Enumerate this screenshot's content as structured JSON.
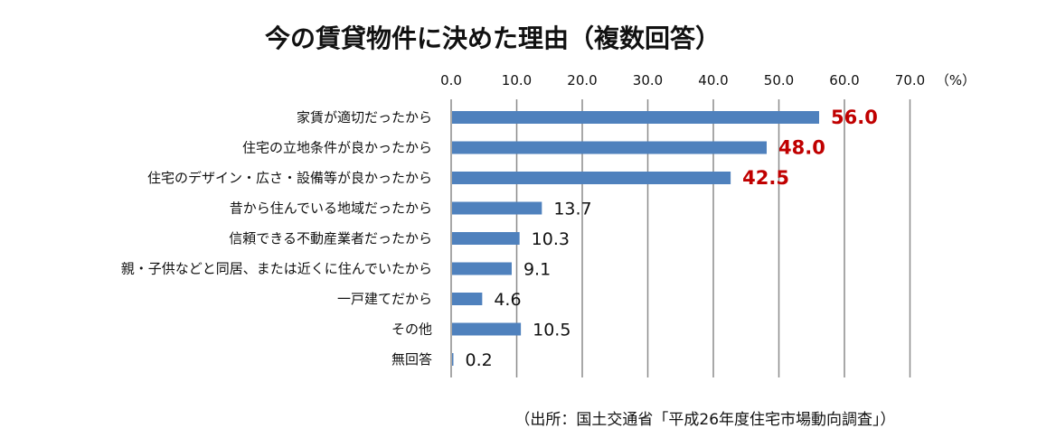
{
  "chart_data": {
    "type": "bar",
    "orientation": "horizontal",
    "title": "今の賃貸物件に決めた理由（複数回答）",
    "unit_label": "（%）",
    "xlim": [
      0,
      70
    ],
    "x_ticks": [
      "0.0",
      "10.0",
      "20.0",
      "30.0",
      "40.0",
      "50.0",
      "60.0",
      "70.0"
    ],
    "grid": true,
    "categories": [
      "家賃が適切だったから",
      "住宅の立地条件が良かったから",
      "住宅のデザイン・広さ・設備等が良かったから",
      "昔から住んでいる地域だったから",
      "信頼できる不動産業者だったから",
      "親・子供などと同居、または近くに住んでいたから",
      "一戸建てだから",
      "その他",
      "無回答"
    ],
    "values": [
      56.0,
      48.0,
      42.5,
      13.7,
      10.3,
      9.1,
      4.6,
      10.5,
      0.2
    ],
    "value_labels": [
      "56.0",
      "48.0",
      "42.5",
      "13.7",
      "10.3",
      "9.1",
      "4.6",
      "10.5",
      "0.2"
    ],
    "highlight_count": 3,
    "source": "（出所：国土交通省「平成26年度住宅市場動向調査」）"
  },
  "colors": {
    "bar": "#4f81bd",
    "highlight_label": "#c00000",
    "grid": "#8c8c8c",
    "text": "#111111"
  }
}
